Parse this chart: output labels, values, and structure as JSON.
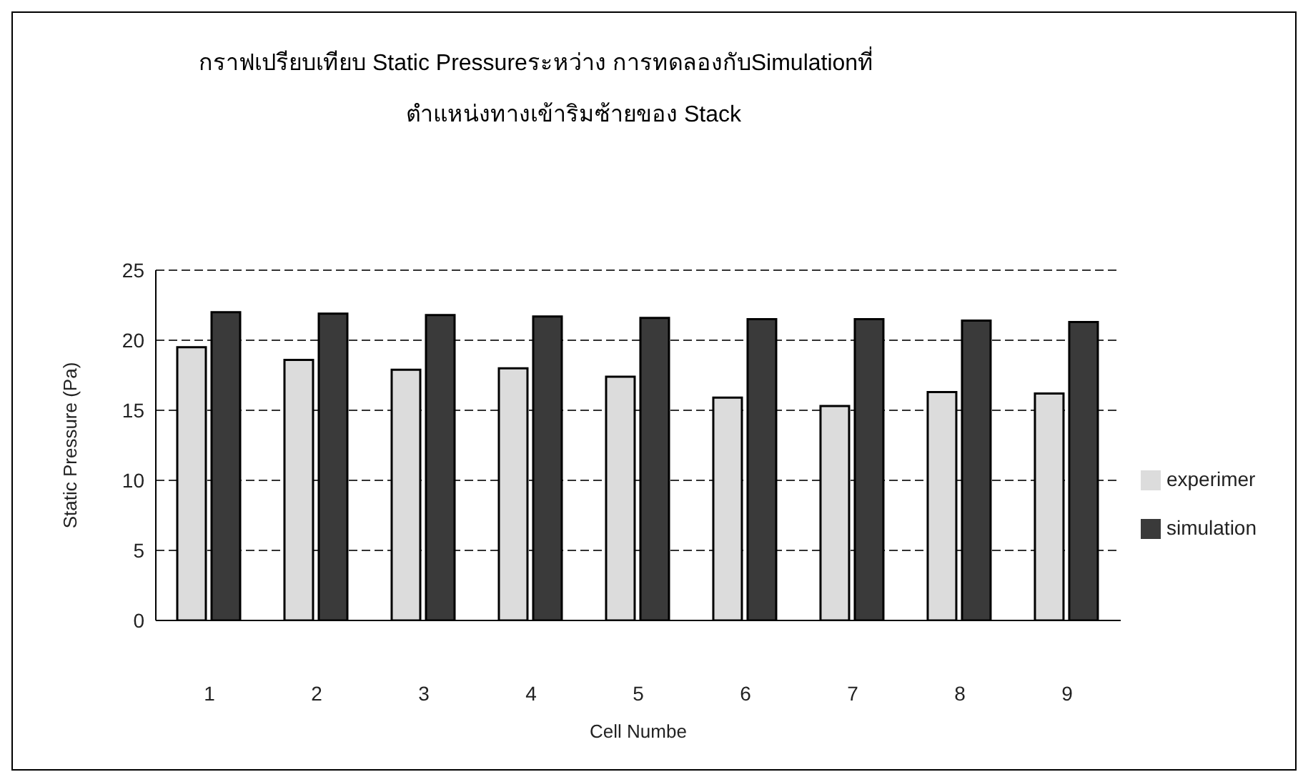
{
  "chart_data": {
    "type": "bar",
    "title": "กราฟเปรียบเทียบ Static Pressureระหว่าง การทดลองกับSimulationที่",
    "subtitle": "ตำแหน่งทางเข้าริมซ้ายของ Stack",
    "xlabel": "Cell Numbe",
    "ylabel": "Static Pressure (Pa)",
    "categories": [
      "1",
      "2",
      "3",
      "4",
      "5",
      "6",
      "7",
      "8",
      "9"
    ],
    "series": [
      {
        "name": "experimer",
        "color": "#dcdcdc",
        "values": [
          19.5,
          18.6,
          17.9,
          18.0,
          17.4,
          15.9,
          15.3,
          16.3,
          16.2
        ]
      },
      {
        "name": "simulation",
        "color": "#3a3a3a",
        "values": [
          22.0,
          21.9,
          21.8,
          21.7,
          21.6,
          21.5,
          21.5,
          21.4,
          21.3
        ]
      }
    ],
    "ylim": [
      0,
      25
    ],
    "yticks": [
      0,
      5,
      10,
      15,
      20,
      25
    ],
    "grid": "y",
    "legend": "right"
  }
}
